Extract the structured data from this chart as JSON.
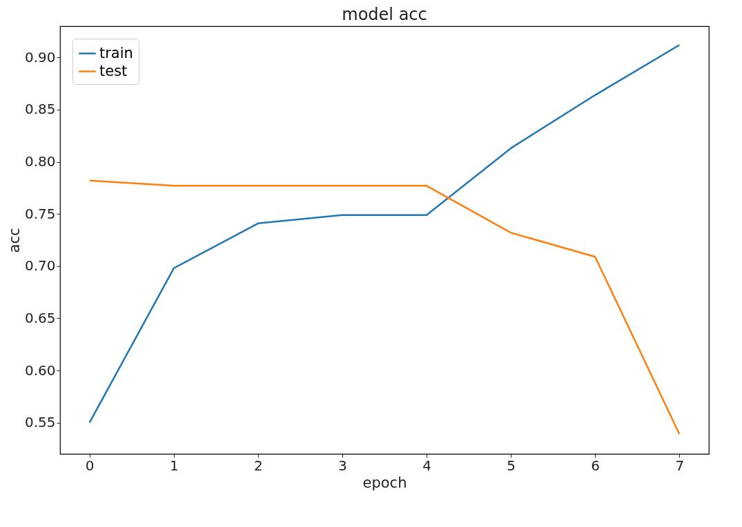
{
  "chart_data": {
    "type": "line",
    "title": "model acc",
    "xlabel": "epoch",
    "ylabel": "acc",
    "x": [
      0,
      1,
      2,
      3,
      4,
      5,
      6,
      7
    ],
    "series": [
      {
        "name": "train",
        "color": "#1f77b4",
        "values": [
          0.55,
          0.698,
          0.741,
          0.749,
          0.749,
          0.813,
          0.864,
          0.912
        ]
      },
      {
        "name": "test",
        "color": "#ff7f0e",
        "values": [
          0.782,
          0.777,
          0.777,
          0.777,
          0.777,
          0.732,
          0.709,
          0.539
        ]
      }
    ],
    "xlim": [
      -0.35,
      7.35
    ],
    "ylim": [
      0.52,
      0.93
    ],
    "xticks": [
      0,
      1,
      2,
      3,
      4,
      5,
      6,
      7
    ],
    "yticks": [
      {
        "value": 0.55,
        "label": "0.55"
      },
      {
        "value": 0.6,
        "label": "0.60"
      },
      {
        "value": 0.65,
        "label": "0.65"
      },
      {
        "value": 0.7,
        "label": "0.70"
      },
      {
        "value": 0.75,
        "label": "0.75"
      },
      {
        "value": 0.8,
        "label": "0.80"
      },
      {
        "value": 0.85,
        "label": "0.85"
      },
      {
        "value": 0.9,
        "label": "0.90"
      }
    ],
    "grid": false,
    "legend": "top left",
    "marker": "none",
    "line_style": "solid"
  }
}
